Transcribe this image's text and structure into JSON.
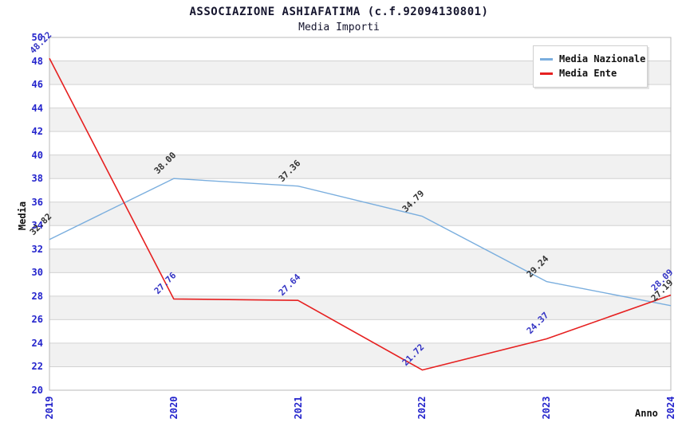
{
  "header": {
    "title": "ASSOCIAZIONE ASHIAFATIMA (c.f.92094130801)",
    "subtitle": "Media Importi"
  },
  "chart_data": {
    "type": "line",
    "title": "ASSOCIAZIONE ASHIAFATIMA (c.f.92094130801)",
    "subtitle": "Media Importi",
    "xlabel": "Anno",
    "ylabel": "Media",
    "x": [
      "2019",
      "2020",
      "2021",
      "2022",
      "2023",
      "2024"
    ],
    "ylim": [
      20,
      50
    ],
    "ytick_step": 2,
    "grid": "horizontal-only",
    "bands": "alternating gray/white every 2 units",
    "legend_position": "top-right",
    "series": [
      {
        "name": "Media Nazionale",
        "color": "#7aaede",
        "label_color": "#333333",
        "values": [
          32.82,
          38.0,
          37.36,
          34.79,
          29.24,
          27.19
        ]
      },
      {
        "name": "Media Ente",
        "color": "#e62020",
        "label_color": "#3434c4",
        "values": [
          48.22,
          27.76,
          27.64,
          21.72,
          24.37,
          28.09
        ]
      }
    ],
    "colors": {
      "tick_label": "#2424cc",
      "title_text": "#15152e",
      "axis_title_text": "#111111",
      "grid_line": "#d2d2d2",
      "band_fill": "#f1f1f1",
      "plot_border": "#b8b8b8",
      "legend_background": "#ffffff"
    }
  }
}
